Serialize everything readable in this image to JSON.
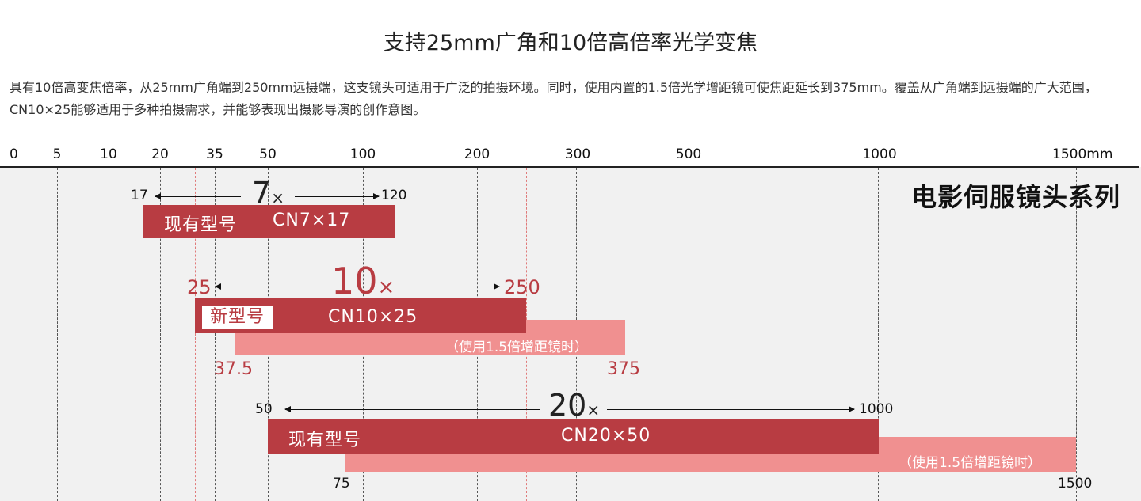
{
  "title": "支持25mm广角和10倍高倍率光学变焦",
  "description": "具有10倍高变焦倍率，从25mm广角端到250mm远摄端，这支镜头可适用于广泛的拍摄环境。同时，使用内置的1.5倍光学增距镜可使焦距延长到375mm。覆盖从广角端到远摄端的广大范围，CN10×25能够适用于多种拍摄需求，并能够表现出摄影导演的创作意图。",
  "chart_data": {
    "type": "bar",
    "series_label": "电影伺服镜头系列",
    "x_axis": {
      "unit": "mm",
      "ticks": [
        "0",
        "5",
        "10",
        "20",
        "35",
        "50",
        "100",
        "200",
        "300",
        "500",
        "1000",
        "1500mm"
      ]
    },
    "colors": {
      "main": "#b83c42",
      "extender": "#f09090",
      "highlight_text": "#b83c42"
    },
    "lenses": [
      {
        "tag": "现有型号",
        "model": "CN7×17",
        "wide": 17,
        "tele": 120,
        "zoom": "7",
        "zoom_suffix": "×",
        "wide_label": "17",
        "tele_label": "120",
        "highlight": false
      },
      {
        "tag": "新型号",
        "model": "CN10×25",
        "wide": 25,
        "tele": 250,
        "zoom": "10",
        "zoom_suffix": "×",
        "wide_label": "25",
        "tele_label": "250",
        "highlight": true,
        "extender": {
          "wide": 37.5,
          "tele": 375,
          "wide_label": "37.5",
          "tele_label": "375",
          "note": "（使用1.5倍增距镜时）"
        }
      },
      {
        "tag": "现有型号",
        "model": "CN20×50",
        "wide": 50,
        "tele": 1000,
        "zoom": "20",
        "zoom_suffix": "×",
        "wide_label": "50",
        "tele_label": "1000",
        "highlight": false,
        "extender": {
          "wide": 75,
          "tele": 1500,
          "wide_label": "75",
          "tele_label": "1500",
          "note": "（使用1.5倍增距镜时）"
        }
      }
    ]
  }
}
